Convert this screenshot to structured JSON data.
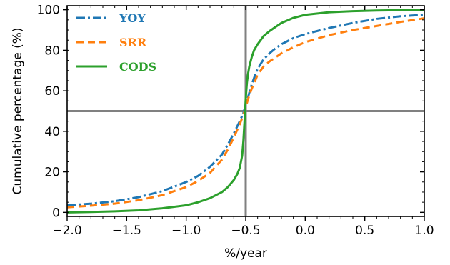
{
  "chart_data": {
    "type": "line",
    "title": "",
    "xlabel": "%/year",
    "ylabel": "Cumulative percentage (%)",
    "xlim": [
      -2.0,
      1.0
    ],
    "ylim": [
      -2,
      102
    ],
    "xticks": [
      -2.0,
      -1.5,
      -1.0,
      -0.5,
      0.0,
      0.5,
      1.0
    ],
    "xtick_labels": [
      "−2.0",
      "−1.5",
      "−1.0",
      "−0.5",
      "0.0",
      "0.5",
      "1.0"
    ],
    "yticks": [
      0,
      20,
      40,
      60,
      80,
      100
    ],
    "ytick_labels": [
      "0",
      "20",
      "40",
      "60",
      "80",
      "100"
    ],
    "grid": false,
    "legend_position": "top-left",
    "reference_lines": [
      {
        "orientation": "vertical",
        "value": -0.5,
        "color": "#808080"
      },
      {
        "orientation": "horizontal",
        "value": 50,
        "color": "#808080"
      }
    ],
    "series": [
      {
        "name": "YOY",
        "color": "#1f77b4",
        "style": "dashdot",
        "x": [
          -2.0,
          -1.8,
          -1.6,
          -1.4,
          -1.2,
          -1.0,
          -0.9,
          -0.8,
          -0.7,
          -0.65,
          -0.6,
          -0.55,
          -0.52,
          -0.5,
          -0.48,
          -0.45,
          -0.42,
          -0.4,
          -0.35,
          -0.3,
          -0.25,
          -0.2,
          -0.1,
          0.0,
          0.2,
          0.4,
          0.6,
          0.8,
          1.0
        ],
        "y": [
          3.5,
          4.3,
          5.5,
          7.5,
          10.5,
          15.0,
          18.0,
          22.5,
          28.5,
          33.5,
          39.0,
          45.0,
          49.0,
          53.0,
          57.0,
          63.0,
          68.0,
          71.0,
          75.5,
          78.5,
          81.0,
          83.0,
          86.0,
          88.0,
          91.0,
          93.5,
          95.5,
          96.8,
          97.5
        ]
      },
      {
        "name": "SRR",
        "color": "#ff7f0e",
        "style": "dashed",
        "x": [
          -2.0,
          -1.8,
          -1.6,
          -1.4,
          -1.2,
          -1.0,
          -0.9,
          -0.8,
          -0.7,
          -0.65,
          -0.6,
          -0.55,
          -0.52,
          -0.5,
          -0.48,
          -0.45,
          -0.42,
          -0.4,
          -0.35,
          -0.3,
          -0.25,
          -0.2,
          -0.1,
          0.0,
          0.2,
          0.4,
          0.6,
          0.8,
          1.0
        ],
        "y": [
          2.5,
          3.3,
          4.3,
          6.0,
          8.5,
          12.5,
          15.5,
          19.5,
          26.0,
          31.0,
          37.0,
          43.5,
          48.0,
          52.0,
          56.0,
          61.0,
          65.0,
          68.0,
          72.0,
          74.5,
          76.5,
          78.5,
          81.5,
          84.0,
          87.5,
          90.0,
          92.0,
          94.0,
          95.8
        ]
      },
      {
        "name": "CODS",
        "color": "#2ca02c",
        "style": "solid",
        "x": [
          -2.0,
          -1.8,
          -1.6,
          -1.4,
          -1.2,
          -1.0,
          -0.9,
          -0.8,
          -0.7,
          -0.65,
          -0.6,
          -0.57,
          -0.55,
          -0.53,
          -0.52,
          -0.51,
          -0.5,
          -0.49,
          -0.48,
          -0.47,
          -0.45,
          -0.43,
          -0.4,
          -0.35,
          -0.3,
          -0.25,
          -0.2,
          -0.1,
          0.0,
          0.2,
          0.4,
          0.6,
          0.8,
          1.0
        ],
        "y": [
          0.0,
          0.2,
          0.5,
          1.0,
          2.0,
          3.5,
          5.0,
          7.0,
          10.0,
          12.5,
          16.0,
          19.0,
          22.0,
          28.0,
          35.0,
          45.0,
          56.0,
          64.0,
          68.5,
          72.0,
          76.5,
          80.0,
          83.0,
          87.0,
          89.5,
          91.5,
          93.5,
          96.0,
          97.5,
          98.8,
          99.3,
          99.6,
          99.8,
          100.0
        ]
      }
    ]
  }
}
